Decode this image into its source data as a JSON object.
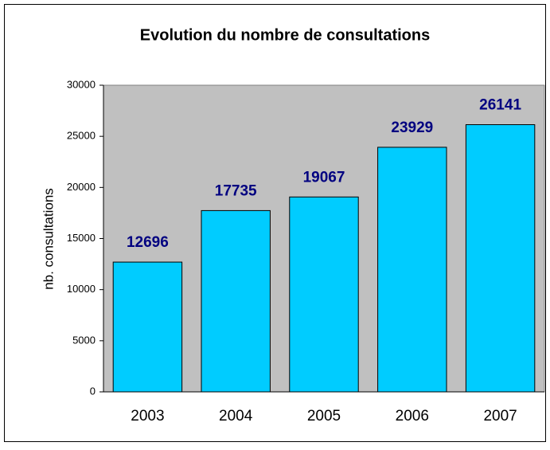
{
  "chart_data": {
    "type": "bar",
    "title": "Evolution du nombre de consultations",
    "y_label": "nb. consultations",
    "categories": [
      "2003",
      "2004",
      "2005",
      "2006",
      "2007"
    ],
    "values": [
      12696,
      17735,
      19067,
      23929,
      26141
    ],
    "color": "#00ccff",
    "label_color": "#000080",
    "plot_background": "#c0c0c0",
    "ylim": [
      0,
      30000
    ],
    "yticks": [
      0,
      5000,
      10000,
      15000,
      20000,
      25000,
      30000
    ],
    "grid": false
  }
}
